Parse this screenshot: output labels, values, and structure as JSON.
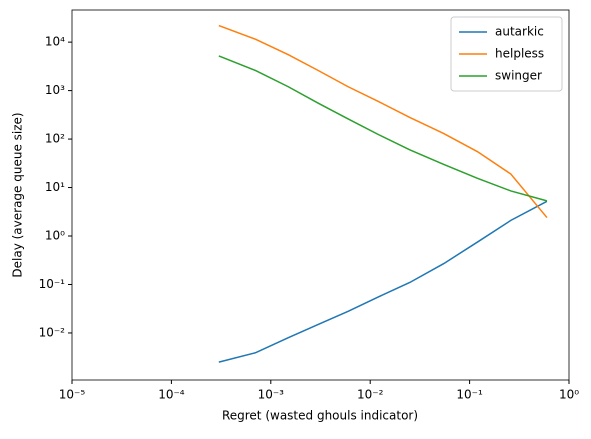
{
  "chart_data": {
    "type": "line",
    "x_label": "Regret (wasted ghouls indicator)",
    "y_label": "Delay (average queue size)",
    "x": [
      0.0003,
      0.0007,
      0.0015,
      0.003,
      0.006,
      0.012,
      0.025,
      0.055,
      0.12,
      0.26,
      0.6
    ],
    "series": [
      {
        "name": "autarkic",
        "color": "#1f77b4",
        "values": [
          0.0025,
          0.0039,
          0.008,
          0.015,
          0.028,
          0.055,
          0.11,
          0.27,
          0.75,
          2.1,
          5.2
        ]
      },
      {
        "name": "helpless",
        "color": "#ff7f0e",
        "values": [
          22000,
          11500,
          5500,
          2600,
          1200,
          600,
          280,
          130,
          55,
          19,
          2.4
        ]
      },
      {
        "name": "swinger",
        "color": "#2ca02c",
        "values": [
          5200,
          2600,
          1200,
          550,
          260,
          125,
          60,
          30,
          15.5,
          8.5,
          5.3
        ]
      }
    ],
    "xscale": "log",
    "yscale": "log",
    "xlim": [
      1e-05,
      1
    ],
    "ylim": [
      0.00107,
      46000
    ],
    "xticks": [
      {
        "value": 1e-05,
        "label": "10⁻⁵"
      },
      {
        "value": 0.0001,
        "label": "10⁻⁴"
      },
      {
        "value": 0.001,
        "label": "10⁻³"
      },
      {
        "value": 0.01,
        "label": "10⁻²"
      },
      {
        "value": 0.1,
        "label": "10⁻¹"
      },
      {
        "value": 1,
        "label": "10⁰"
      }
    ],
    "yticks": [
      {
        "value": 0.01,
        "label": "10⁻²"
      },
      {
        "value": 0.1,
        "label": "10⁻¹"
      },
      {
        "value": 1,
        "label": "10⁰"
      },
      {
        "value": 10,
        "label": "10¹"
      },
      {
        "value": 100,
        "label": "10²"
      },
      {
        "value": 1000,
        "label": "10³"
      },
      {
        "value": 10000,
        "label": "10⁴"
      }
    ],
    "legend": "upper right"
  }
}
